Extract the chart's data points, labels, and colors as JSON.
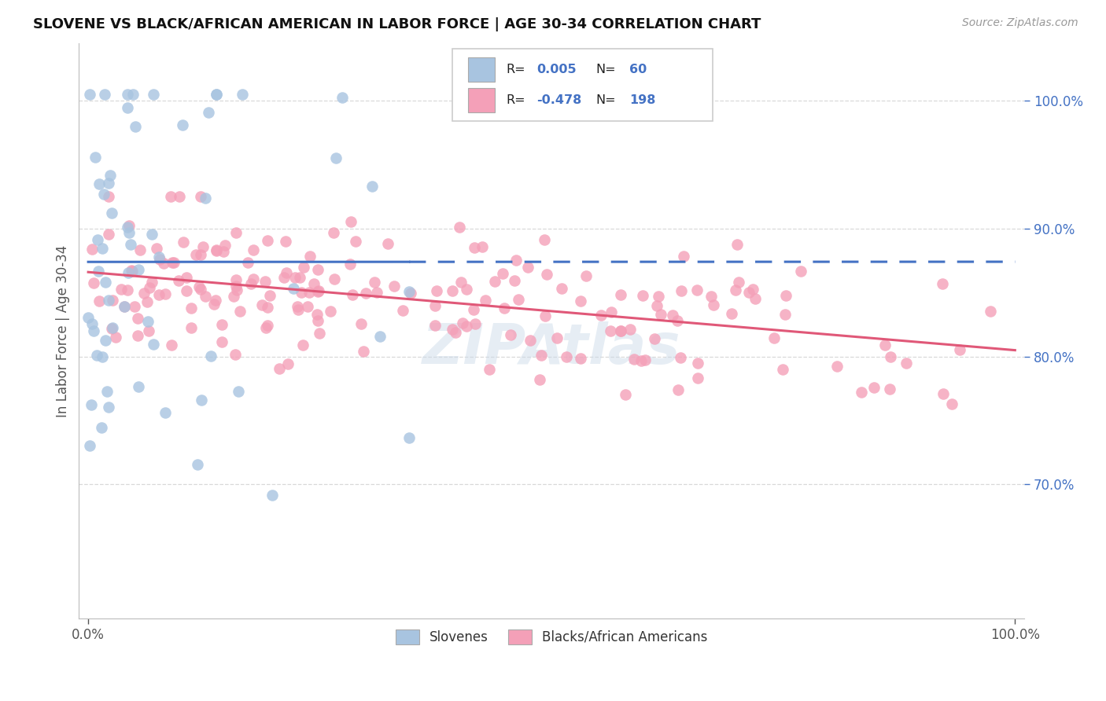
{
  "title": "SLOVENE VS BLACK/AFRICAN AMERICAN IN LABOR FORCE | AGE 30-34 CORRELATION CHART",
  "source": "Source: ZipAtlas.com",
  "ylabel": "In Labor Force | Age 30-34",
  "blue_color": "#a8c4e0",
  "pink_color": "#f4a0b8",
  "blue_line_color": "#4472c4",
  "pink_line_color": "#e05878",
  "ytick_color": "#4472c4",
  "background_color": "#ffffff",
  "grid_color": "#d0d0d0",
  "watermark_color": "#c8d8e8",
  "r_value_color": "#4472c4"
}
